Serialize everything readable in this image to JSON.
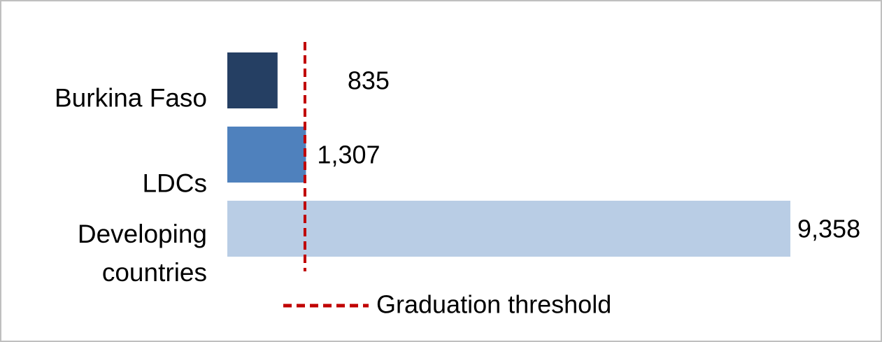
{
  "chart_data": {
    "type": "bar",
    "orientation": "horizontal",
    "categories": [
      "Burkina Faso",
      "LDCs",
      "Developing countries"
    ],
    "values": [
      835,
      1307,
      9358
    ],
    "value_labels": [
      "835",
      "1,307",
      "9,358"
    ],
    "colors": [
      "#253f63",
      "#4f81bd",
      "#b9cde5"
    ],
    "xlim": [
      0,
      9358
    ],
    "threshold": {
      "name": "Graduation threshold",
      "value": 1290,
      "color": "#c00000"
    }
  }
}
